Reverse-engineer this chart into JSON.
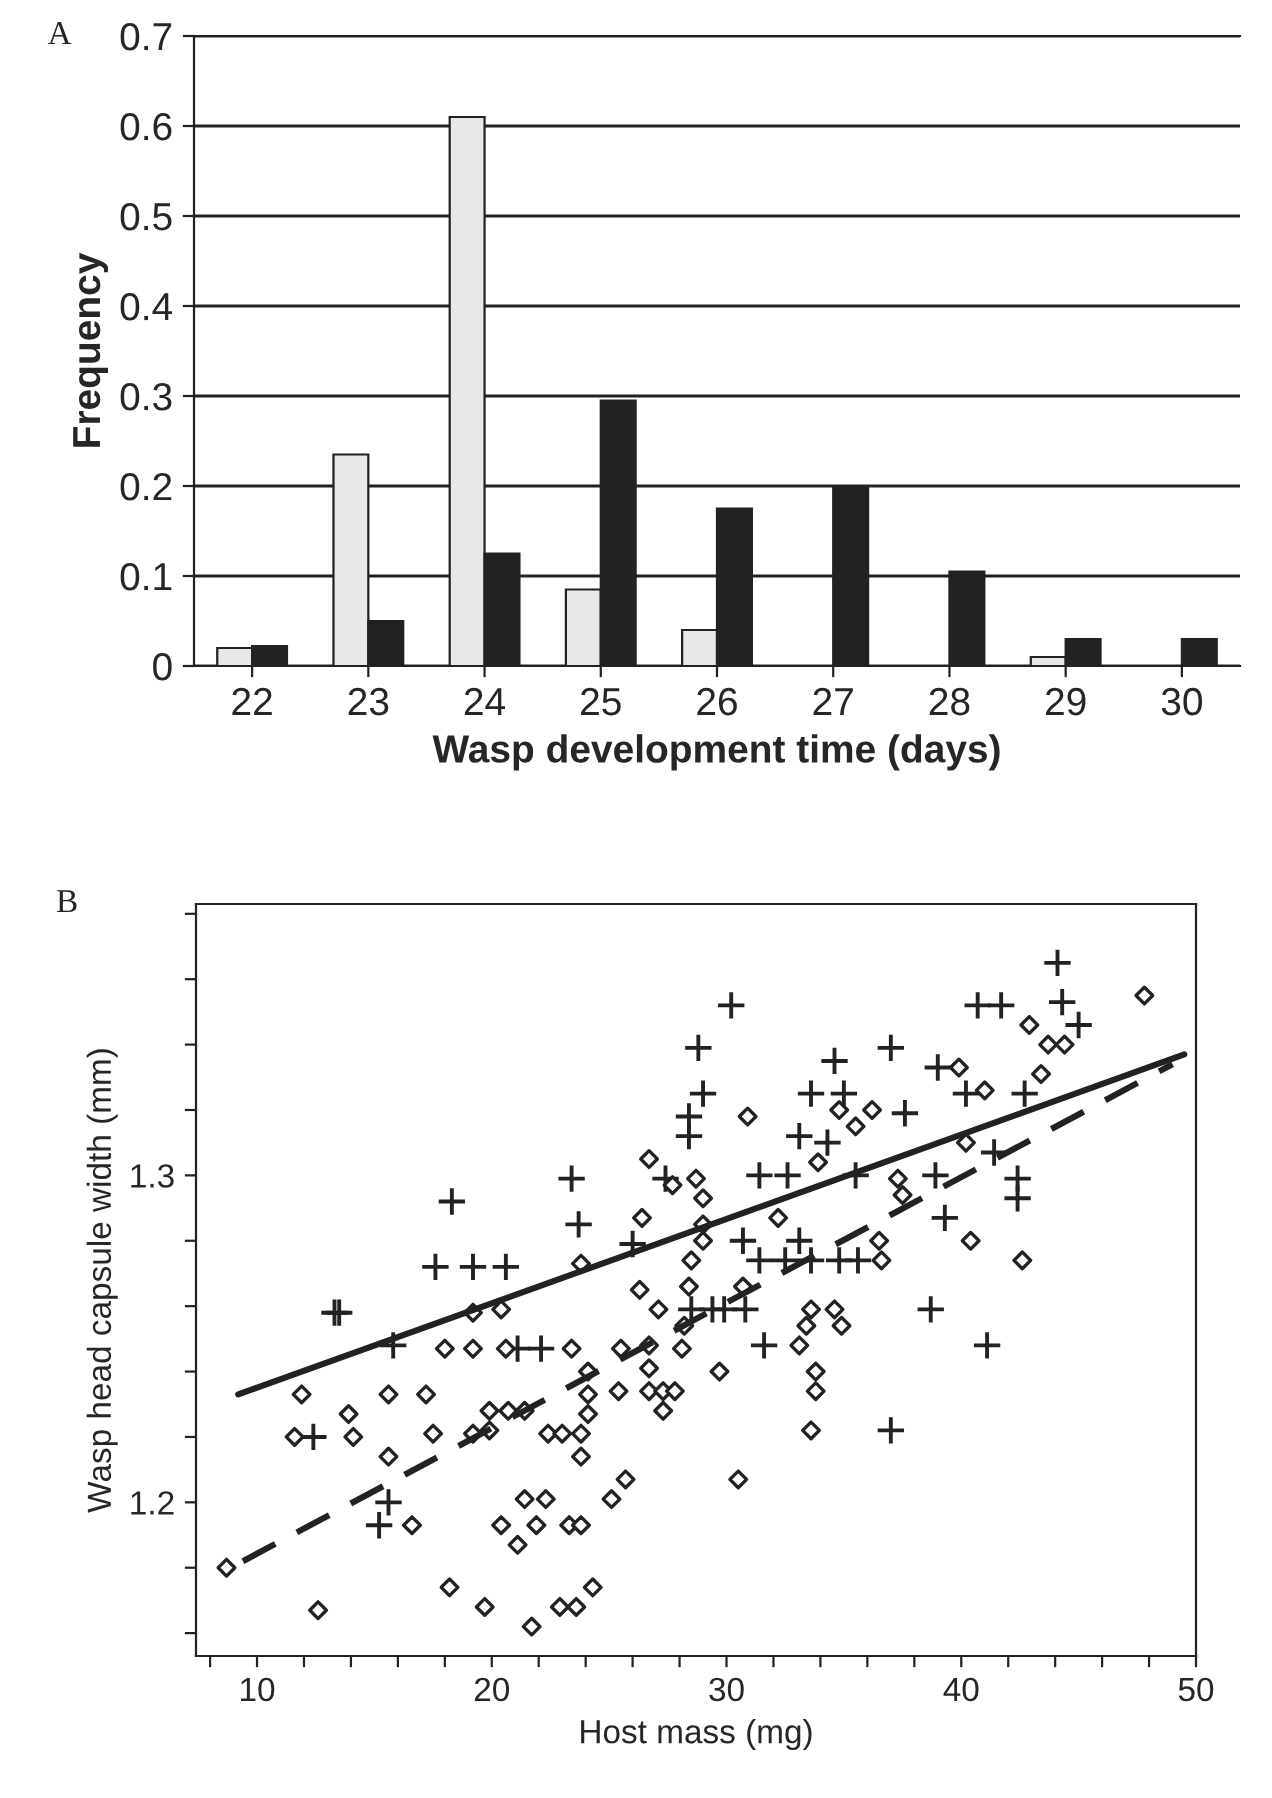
{
  "chart_data": [
    {
      "type": "bar",
      "annotations": [
        "A"
      ],
      "xlabel": "Wasp development time (days)",
      "ylabel": "Frequency",
      "categories": [
        "22",
        "23",
        "24",
        "25",
        "26",
        "27",
        "28",
        "29",
        "30"
      ],
      "series": [
        {
          "color": "#e8e8e8",
          "values": [
            0.02,
            0.235,
            0.61,
            0.085,
            0.04,
            null,
            null,
            0.01,
            null
          ]
        },
        {
          "color": "#222222",
          "values": [
            0.022,
            0.05,
            0.125,
            0.295,
            0.175,
            0.2,
            0.105,
            0.03,
            0.03
          ]
        }
      ],
      "ylim": [
        0,
        0.7
      ],
      "yticks": [
        0,
        0.1,
        0.2,
        0.3,
        0.4,
        0.5,
        0.6,
        0.7
      ],
      "grid": "y",
      "legend": false
    },
    {
      "type": "scatter",
      "annotations": [
        "B"
      ],
      "xlabel": "Host mass (mg)",
      "ylabel": "Wasp head capsule width (mm)",
      "series": [
        {
          "type": "scatter",
          "marker": "cross",
          "color": "#222222",
          "x": [
            30.2,
            28.8,
            29.0,
            28.4,
            28.4,
            18.3,
            23.4,
            23.7,
            17.6,
            19.2,
            20.6,
            13.5,
            13.3,
            26.0,
            27.4,
            15.8,
            21.1,
            22.1,
            12.4,
            15.6,
            15.2,
            28.5,
            29.4,
            44.1,
            40.7,
            41.7,
            44.3,
            45.0,
            37.0,
            34.6,
            33.6,
            35.0,
            39.0,
            40.2,
            42.7,
            37.6,
            33.1,
            34.3,
            31.4,
            32.6,
            35.5,
            41.4,
            42.4,
            42.4,
            38.9,
            39.3,
            30.7,
            33.1,
            31.4,
            32.5,
            33.6,
            34.8,
            35.6,
            38.7,
            41.1,
            37.0,
            31.6,
            29.9,
            30.8
          ],
          "values": [
            1.352,
            1.339,
            1.325,
            1.318,
            1.312,
            1.292,
            1.299,
            1.285,
            1.272,
            1.272,
            1.272,
            1.258,
            1.258,
            1.279,
            1.299,
            1.248,
            1.247,
            1.247,
            1.22,
            1.2,
            1.193,
            1.259,
            1.259,
            1.365,
            1.352,
            1.352,
            1.353,
            1.346,
            1.339,
            1.335,
            1.325,
            1.325,
            1.333,
            1.325,
            1.325,
            1.319,
            1.312,
            1.31,
            1.3,
            1.3,
            1.3,
            1.307,
            1.299,
            1.293,
            1.3,
            1.287,
            1.28,
            1.28,
            1.274,
            1.274,
            1.274,
            1.274,
            1.274,
            1.259,
            1.248,
            1.222,
            1.248,
            1.259,
            1.259
          ]
        },
        {
          "type": "scatter",
          "marker": "diamond",
          "color": "#222222",
          "x": [
            26.7,
            27.7,
            28.7,
            26.4,
            29.0,
            28.5,
            28.4,
            23.8,
            26.3,
            27.1,
            28.2,
            20.4,
            19.2,
            18.0,
            19.2,
            20.6,
            23.4,
            25.5,
            26.7,
            26.7,
            26.7,
            28.1,
            27.3,
            27.8,
            27.3,
            29.7,
            24.1,
            24.1,
            24.1,
            23.8,
            23.8,
            25.4,
            22.4,
            23.0,
            19.9,
            20.7,
            21.4,
            19.2,
            19.9,
            17.5,
            11.9,
            15.6,
            17.2,
            13.9,
            14.1,
            11.6,
            15.6,
            8.7,
            16.6,
            20.4,
            21.9,
            22.3,
            23.3,
            23.8,
            21.4,
            21.1,
            25.7,
            25.1,
            12.6,
            18.2,
            19.7,
            21.7,
            22.9,
            23.6,
            24.3,
            47.8,
            42.9,
            43.7,
            44.4,
            43.4,
            39.9,
            41.0,
            30.9,
            34.8,
            36.2,
            35.5,
            40.2,
            33.9,
            37.3,
            37.5,
            29.0,
            29.0,
            32.2,
            36.5,
            36.6,
            30.7,
            40.4,
            42.6,
            33.6,
            34.6,
            33.1,
            33.8,
            33.8,
            33.6,
            30.5,
            34.9,
            33.4
          ],
          "values": [
            1.305,
            1.297,
            1.299,
            1.287,
            1.293,
            1.274,
            1.266,
            1.273,
            1.265,
            1.259,
            1.254,
            1.259,
            1.258,
            1.247,
            1.247,
            1.247,
            1.247,
            1.247,
            1.248,
            1.241,
            1.234,
            1.247,
            1.234,
            1.234,
            1.228,
            1.24,
            1.24,
            1.233,
            1.227,
            1.221,
            1.214,
            1.234,
            1.221,
            1.221,
            1.228,
            1.228,
            1.228,
            1.221,
            1.222,
            1.221,
            1.233,
            1.233,
            1.233,
            1.227,
            1.22,
            1.22,
            1.214,
            1.18,
            1.193,
            1.193,
            1.193,
            1.201,
            1.193,
            1.193,
            1.201,
            1.187,
            1.207,
            1.201,
            1.167,
            1.174,
            1.168,
            1.162,
            1.168,
            1.168,
            1.174,
            1.355,
            1.346,
            1.34,
            1.34,
            1.331,
            1.333,
            1.326,
            1.318,
            1.32,
            1.32,
            1.315,
            1.31,
            1.304,
            1.299,
            1.294,
            1.285,
            1.28,
            1.287,
            1.28,
            1.274,
            1.266,
            1.28,
            1.274,
            1.259,
            1.259,
            1.248,
            1.24,
            1.234,
            1.222,
            1.207,
            1.254,
            1.254
          ]
        },
        {
          "type": "line",
          "line_style": "solid",
          "color": "#222222",
          "x": [
            9.2,
            49.5
          ],
          "values": [
            1.233,
            1.337
          ]
        },
        {
          "type": "line",
          "line_style": "dashed",
          "color": "#222222",
          "x": [
            9.4,
            49.0
          ],
          "values": [
            1.182,
            1.334
          ]
        }
      ],
      "xlim": [
        7.4,
        50
      ],
      "xticks": [
        {
          "value": 8,
          "label": null
        },
        10,
        {
          "value": 12,
          "label": null
        },
        {
          "value": 14,
          "label": null
        },
        {
          "value": 16,
          "label": null
        },
        {
          "value": 18,
          "label": null
        },
        20,
        {
          "value": 22,
          "label": null
        },
        {
          "value": 24,
          "label": null
        },
        {
          "value": 26,
          "label": null
        },
        {
          "value": 28,
          "label": null
        },
        30,
        {
          "value": 32,
          "label": null
        },
        {
          "value": 34,
          "label": null
        },
        {
          "value": 36,
          "label": null
        },
        {
          "value": 38,
          "label": null
        },
        40,
        {
          "value": 42,
          "label": null
        },
        {
          "value": 44,
          "label": null
        },
        {
          "value": 46,
          "label": null
        },
        {
          "value": 48,
          "label": null
        },
        50
      ],
      "ylim": [
        1.153,
        1.383
      ],
      "yticks": [
        {
          "value": 1.16,
          "label": null
        },
        {
          "value": 1.18,
          "label": null
        },
        1.2,
        {
          "value": 1.22,
          "label": null
        },
        {
          "value": 1.24,
          "label": null
        },
        {
          "value": 1.26,
          "label": null
        },
        {
          "value": 1.28,
          "label": null
        },
        1.3,
        {
          "value": 1.32,
          "label": null
        },
        {
          "value": 1.34,
          "label": null
        },
        {
          "value": 1.36,
          "label": null
        },
        {
          "value": 1.38,
          "label": null
        }
      ],
      "grid": false,
      "legend": false
    }
  ]
}
